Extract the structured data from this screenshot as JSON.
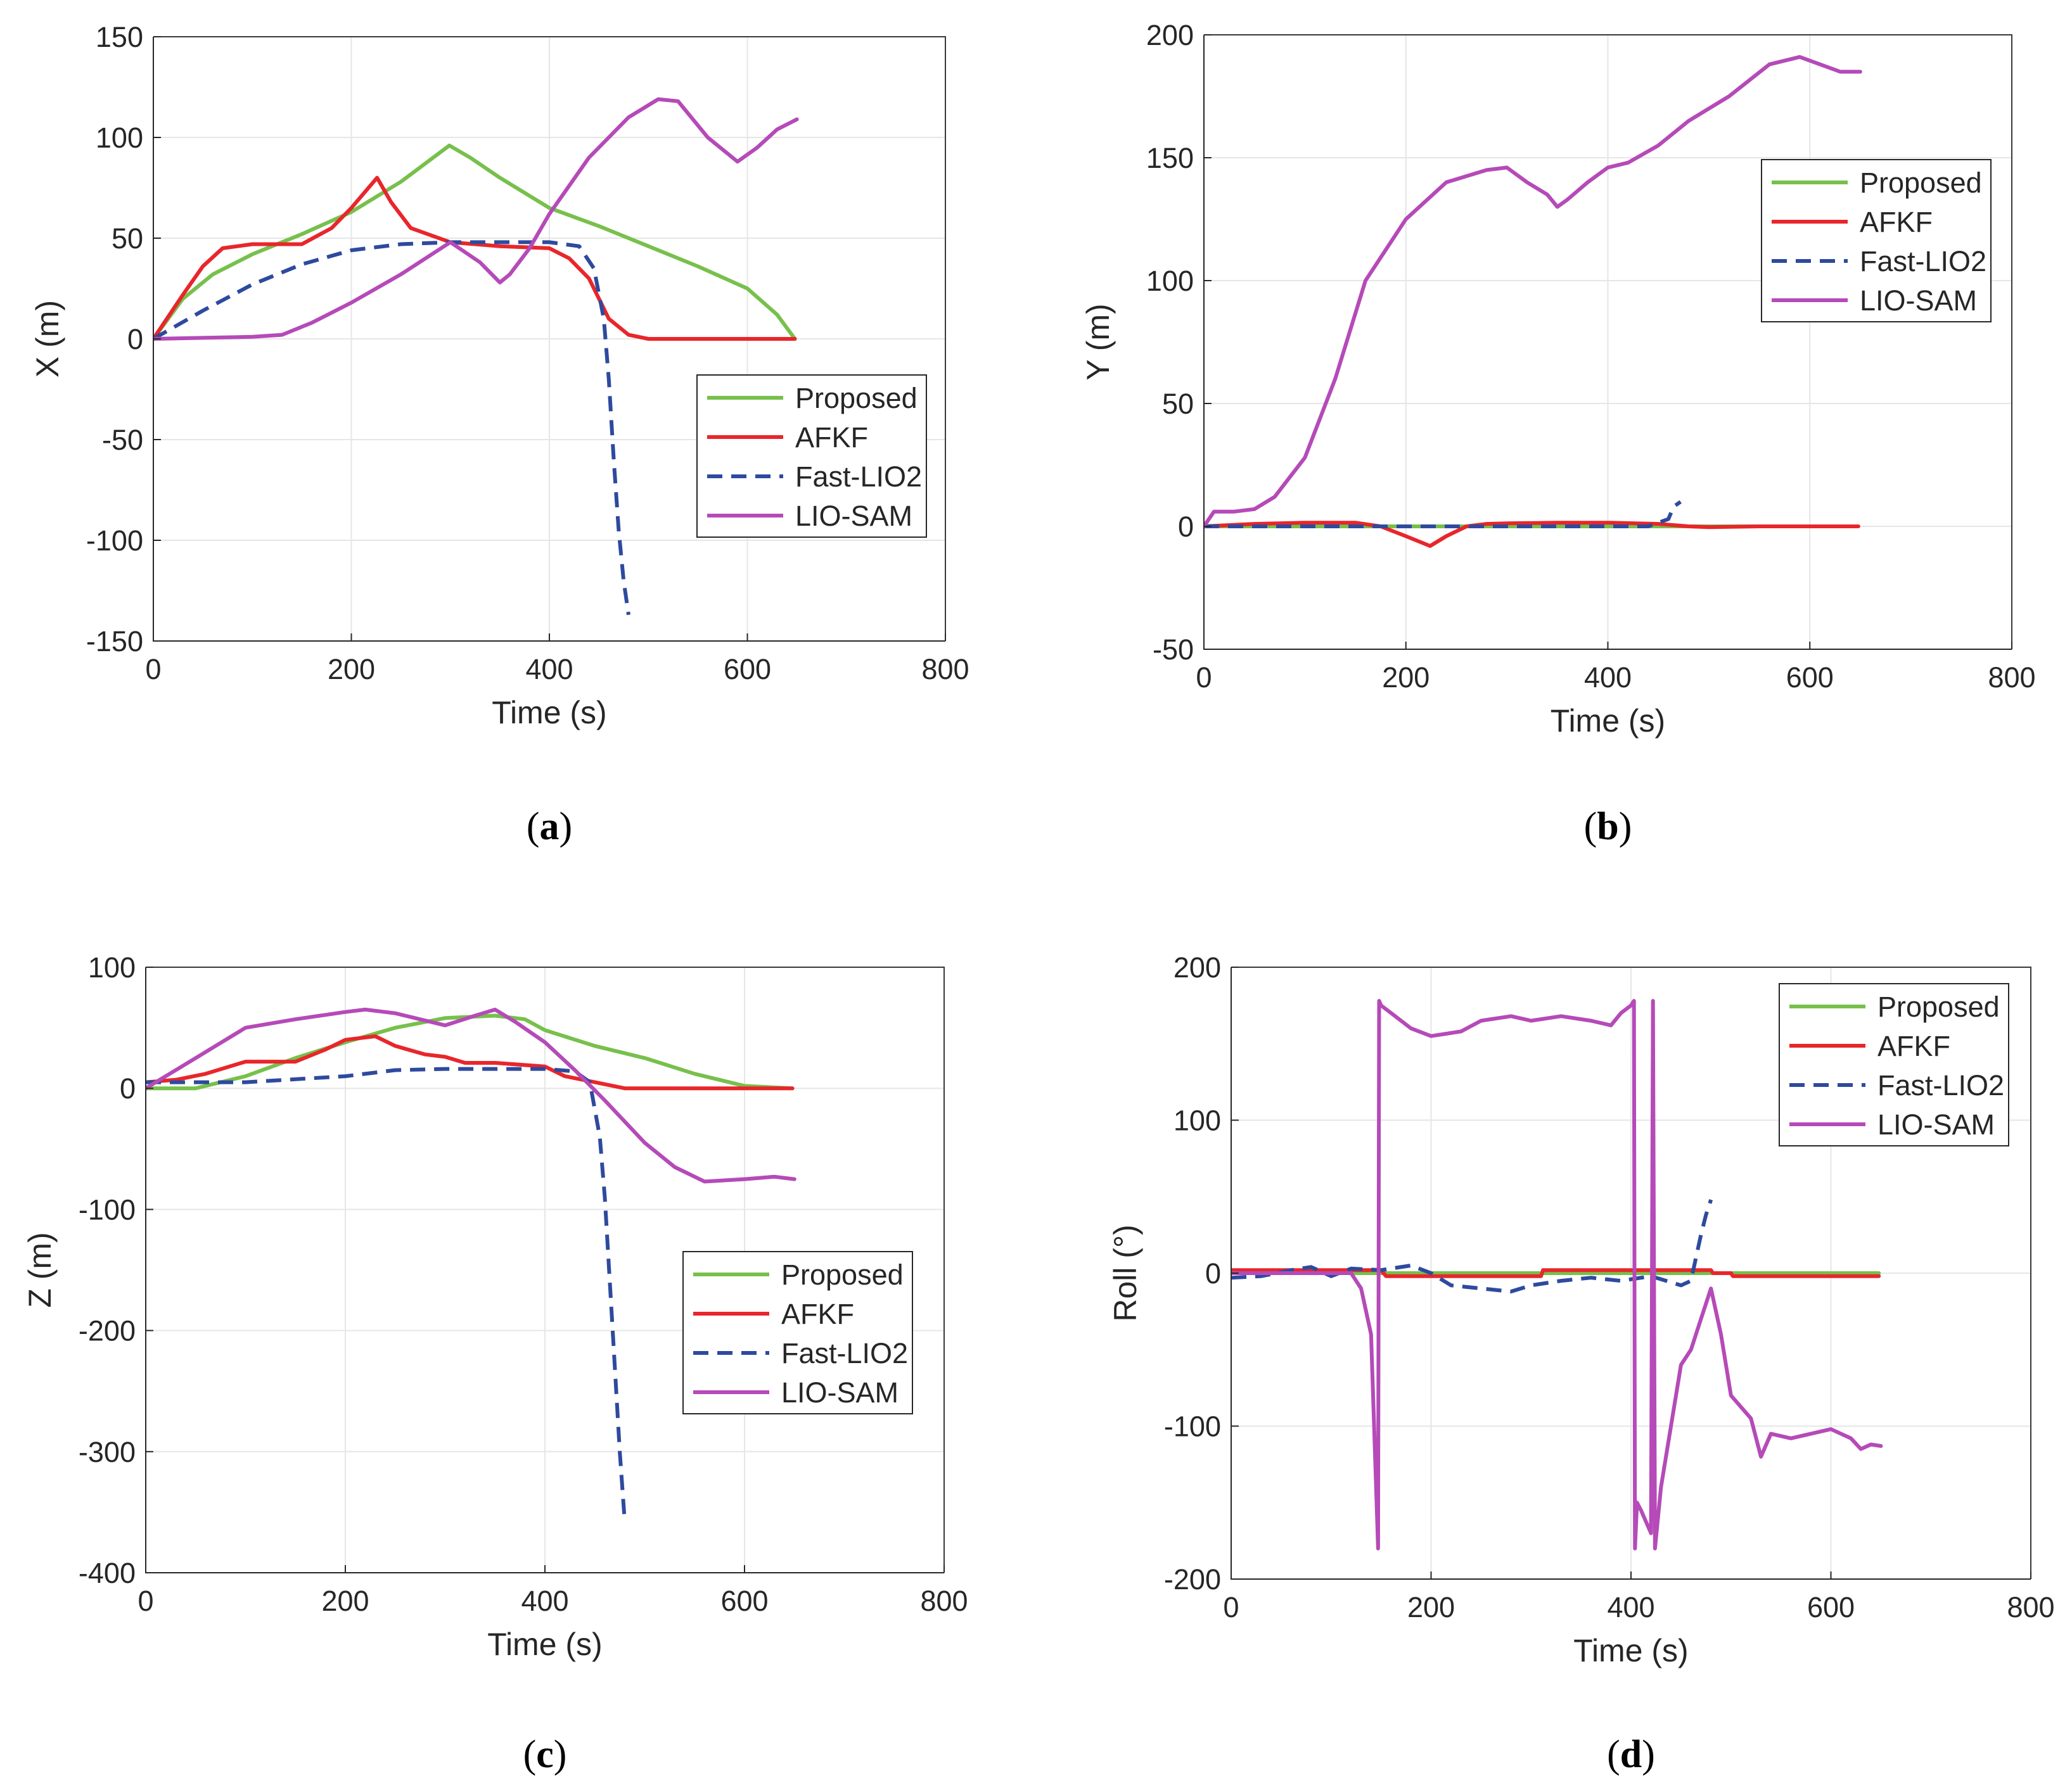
{
  "figure": {
    "subcaptions": [
      "a",
      "b",
      "c",
      "d"
    ]
  },
  "colors": {
    "Proposed": "#77c04c",
    "AFKF": "#e8262b",
    "Fast-LIO2": "#2e4a9e",
    "LIO-SAM": "#b54ab8",
    "grid": "#e6e6e6",
    "axis": "#262626"
  },
  "chart_data": [
    {
      "type": "line",
      "panel": "a",
      "xlabel": "Time (s)",
      "ylabel": "X (m)",
      "xlim": [
        0,
        800
      ],
      "ylim": [
        -150,
        150
      ],
      "xticks": [
        0,
        200,
        400,
        600,
        800
      ],
      "yticks": [
        -150,
        -100,
        -50,
        0,
        50,
        100,
        150
      ],
      "grid": true,
      "legend_position": "lower-right",
      "series": [
        {
          "name": "Proposed",
          "style": "solid",
          "x": [
            0,
            30,
            60,
            100,
            150,
            200,
            250,
            299,
            320,
            350,
            400,
            450,
            500,
            550,
            600,
            630,
            648
          ],
          "y": [
            0,
            20,
            32,
            42,
            52,
            63,
            78,
            96,
            90,
            80,
            65,
            56,
            46,
            36,
            25,
            12,
            0
          ]
        },
        {
          "name": "AFKF",
          "style": "solid",
          "x": [
            0,
            30,
            50,
            70,
            100,
            150,
            180,
            200,
            226,
            240,
            260,
            300,
            350,
            400,
            420,
            440,
            460,
            480,
            500,
            550,
            600,
            648
          ],
          "y": [
            0,
            22,
            36,
            45,
            47,
            47,
            55,
            65,
            80,
            68,
            55,
            48,
            46,
            45,
            40,
            30,
            10,
            2,
            0,
            0,
            0,
            0
          ]
        },
        {
          "name": "Fast-LIO2",
          "style": "dashed",
          "x": [
            0,
            50,
            100,
            150,
            200,
            250,
            300,
            350,
            400,
            430,
            445,
            455,
            460,
            465,
            470,
            475,
            480
          ],
          "y": [
            0,
            14,
            27,
            37,
            44,
            47,
            48,
            48,
            48,
            46,
            35,
            10,
            -20,
            -60,
            -95,
            -120,
            -137
          ]
        },
        {
          "name": "LIO-SAM",
          "style": "solid",
          "x": [
            0,
            50,
            100,
            130,
            160,
            200,
            250,
            300,
            330,
            350,
            360,
            380,
            400,
            440,
            480,
            510,
            530,
            560,
            590,
            610,
            630,
            650
          ],
          "y": [
            0,
            0.5,
            1,
            2,
            8,
            18,
            32,
            48,
            38,
            28,
            32,
            45,
            62,
            90,
            110,
            119,
            118,
            100,
            88,
            95,
            104,
            109
          ]
        }
      ]
    },
    {
      "type": "line",
      "panel": "b",
      "xlabel": "Time (s)",
      "ylabel": "Y (m)",
      "xlim": [
        0,
        800
      ],
      "ylim": [
        -50,
        200
      ],
      "xticks": [
        0,
        200,
        400,
        600,
        800
      ],
      "yticks": [
        -50,
        0,
        50,
        100,
        150,
        200
      ],
      "grid": true,
      "legend_position": "top-right",
      "series": [
        {
          "name": "Proposed",
          "style": "solid",
          "x": [
            0,
            100,
            200,
            300,
            400,
            500,
            600,
            648
          ],
          "y": [
            0,
            0,
            0,
            0,
            0,
            0,
            0,
            0
          ]
        },
        {
          "name": "AFKF",
          "style": "solid",
          "x": [
            0,
            50,
            100,
            150,
            175,
            200,
            224,
            240,
            260,
            280,
            300,
            350,
            400,
            450,
            480,
            500,
            550,
            600,
            648
          ],
          "y": [
            0,
            1,
            1.5,
            1.5,
            0,
            -4,
            -8,
            -4,
            0,
            1,
            1.2,
            1.5,
            1.5,
            1,
            0,
            -0.3,
            0,
            0,
            0
          ]
        },
        {
          "name": "Fast-LIO2",
          "style": "dashed",
          "x": [
            0,
            100,
            200,
            300,
            400,
            440,
            460,
            465,
            472
          ],
          "y": [
            0,
            0,
            0,
            0,
            0,
            0,
            3,
            8,
            10
          ]
        },
        {
          "name": "LIO-SAM",
          "style": "solid",
          "x": [
            0,
            10,
            30,
            50,
            70,
            100,
            130,
            160,
            200,
            240,
            280,
            300,
            320,
            340,
            350,
            360,
            380,
            400,
            420,
            450,
            480,
            520,
            560,
            590,
            610,
            630,
            650
          ],
          "y": [
            0,
            6,
            6,
            7,
            12,
            28,
            60,
            100,
            125,
            140,
            145,
            146,
            140,
            135,
            130,
            133,
            140,
            146,
            148,
            155,
            165,
            175,
            188,
            191,
            188,
            185,
            185
          ]
        }
      ]
    },
    {
      "type": "line",
      "panel": "c",
      "xlabel": "Time (s)",
      "ylabel": "Z (m)",
      "xlim": [
        0,
        800
      ],
      "ylim": [
        -400,
        100
      ],
      "xticks": [
        0,
        200,
        400,
        600,
        800
      ],
      "yticks": [
        -400,
        -300,
        -200,
        -100,
        0,
        100
      ],
      "grid": true,
      "legend_position": "lower-right",
      "series": [
        {
          "name": "Proposed",
          "style": "solid",
          "x": [
            0,
            50,
            100,
            150,
            200,
            250,
            300,
            350,
            380,
            400,
            450,
            500,
            550,
            600,
            648
          ],
          "y": [
            0,
            0,
            10,
            25,
            38,
            50,
            58,
            60,
            57,
            48,
            35,
            25,
            12,
            2,
            0
          ]
        },
        {
          "name": "AFKF",
          "style": "solid",
          "x": [
            0,
            30,
            60,
            100,
            150,
            180,
            200,
            230,
            250,
            280,
            300,
            320,
            350,
            400,
            420,
            450,
            480,
            500,
            550,
            600,
            648
          ],
          "y": [
            5,
            7,
            12,
            22,
            22,
            32,
            40,
            43,
            35,
            28,
            26,
            21,
            21,
            18,
            10,
            5,
            0,
            0,
            0,
            0,
            0
          ]
        },
        {
          "name": "Fast-LIO2",
          "style": "dashed",
          "x": [
            0,
            100,
            200,
            250,
            300,
            350,
            400,
            430,
            445,
            455,
            460,
            465,
            470,
            475,
            480
          ],
          "y": [
            5,
            5,
            10,
            15,
            16,
            16,
            16,
            14,
            5,
            -40,
            -90,
            -160,
            -230,
            -300,
            -358
          ]
        },
        {
          "name": "LIO-SAM",
          "style": "solid",
          "x": [
            0,
            50,
            100,
            150,
            200,
            220,
            250,
            300,
            330,
            350,
            370,
            400,
            430,
            460,
            500,
            530,
            560,
            600,
            630,
            650
          ],
          "y": [
            0,
            25,
            50,
            57,
            63,
            65,
            62,
            52,
            60,
            65,
            55,
            38,
            15,
            -10,
            -45,
            -65,
            -77,
            -75,
            -73,
            -75
          ]
        }
      ]
    },
    {
      "type": "line",
      "panel": "d",
      "xlabel": "Time (s)",
      "ylabel": "Roll (°)",
      "xlim": [
        0,
        800
      ],
      "ylim": [
        -200,
        200
      ],
      "xticks": [
        0,
        200,
        400,
        600,
        800
      ],
      "yticks": [
        -200,
        -100,
        0,
        100,
        200
      ],
      "grid": true,
      "legend_position": "top-right",
      "series": [
        {
          "name": "Proposed",
          "style": "solid",
          "x": [
            0,
            100,
            200,
            300,
            400,
            500,
            600,
            648
          ],
          "y": [
            0,
            0,
            0,
            0,
            0,
            0,
            0,
            0
          ]
        },
        {
          "name": "AFKF",
          "style": "solid",
          "x": [
            0,
            150,
            155,
            310,
            312,
            480,
            482,
            500,
            502,
            648
          ],
          "y": [
            2,
            2,
            -2,
            -2,
            2,
            2,
            0,
            0,
            -2,
            -2
          ]
        },
        {
          "name": "Fast-LIO2",
          "style": "dashed",
          "x": [
            0,
            30,
            60,
            80,
            100,
            120,
            150,
            180,
            200,
            220,
            250,
            280,
            300,
            330,
            360,
            390,
            420,
            450,
            460,
            465,
            470,
            475,
            480
          ],
          "y": [
            -3,
            -2,
            2,
            4,
            -2,
            3,
            2,
            5,
            0,
            -8,
            -10,
            -12,
            -8,
            -5,
            -3,
            -5,
            -2,
            -8,
            -5,
            10,
            25,
            38,
            48
          ]
        },
        {
          "name": "LIO-SAM",
          "style": "solid",
          "x": [
            0,
            50,
            100,
            120,
            130,
            140,
            143,
            147,
            148,
            150,
            160,
            180,
            200,
            230,
            250,
            280,
            300,
            330,
            360,
            380,
            390,
            400,
            403,
            404,
            406,
            410,
            420,
            422,
            424,
            430,
            440,
            450,
            460,
            470,
            480,
            490,
            500,
            520,
            530,
            540,
            560,
            580,
            600,
            620,
            630,
            640,
            650
          ],
          "y": [
            0,
            0,
            0,
            0,
            -10,
            -40,
            -100,
            -180,
            178,
            175,
            170,
            160,
            155,
            158,
            165,
            168,
            165,
            168,
            165,
            162,
            170,
            175,
            178,
            -180,
            -150,
            -155,
            -170,
            178,
            -180,
            -140,
            -100,
            -60,
            -50,
            -30,
            -10,
            -40,
            -80,
            -95,
            -120,
            -105,
            -108,
            -105,
            -102,
            -108,
            -115,
            -112,
            -113
          ]
        }
      ]
    }
  ]
}
